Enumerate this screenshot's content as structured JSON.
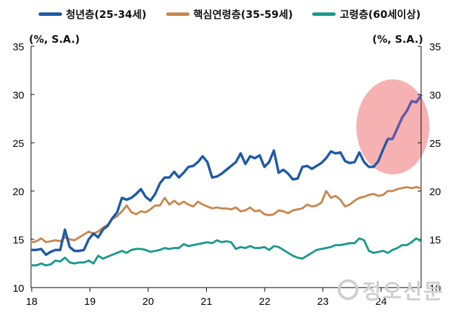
{
  "chart_data": {
    "type": "line",
    "unit_left": "(%, S.A.)",
    "unit_right": "(%, S.A.)",
    "x_tick_labels": [
      "18",
      "19",
      "20",
      "21",
      "22",
      "23",
      "24"
    ],
    "y_tick_labels": [
      "10",
      "15",
      "20",
      "25",
      "30",
      "35"
    ],
    "ylim": [
      10,
      35
    ],
    "legend_position": "top",
    "grid": false,
    "highlight": {
      "shape": "ellipse",
      "color": "#f4a5a5",
      "around": "청년층(25-34세) 2024 surge"
    },
    "series": [
      {
        "name": "청년층(25-34세)",
        "color": "#1f5aa6",
        "values": [
          13.9,
          13.9,
          14.0,
          13.4,
          13.7,
          13.9,
          13.9,
          16.0,
          14.2,
          13.8,
          13.8,
          13.9,
          15.0,
          15.6,
          15.2,
          16.0,
          16.4,
          17.2,
          17.8,
          19.3,
          19.1,
          19.3,
          19.7,
          20.2,
          19.4,
          19.0,
          19.7,
          20.8,
          21.4,
          21.4,
          22.0,
          21.4,
          21.9,
          22.5,
          22.6,
          23.0,
          23.6,
          23.0,
          21.4,
          21.5,
          21.8,
          22.2,
          22.6,
          23.0,
          23.9,
          22.8,
          23.6,
          23.4,
          23.7,
          22.5,
          23.0,
          24.2,
          21.9,
          22.2,
          21.8,
          21.2,
          21.3,
          22.5,
          22.6,
          22.3,
          22.6,
          22.9,
          23.4,
          24.1,
          23.9,
          24.0,
          23.1,
          22.9,
          23.0,
          24.0,
          23.0,
          22.5,
          22.5,
          23.1,
          24.3,
          25.4,
          25.4,
          26.5,
          27.6,
          28.3,
          29.3,
          29.2,
          29.9
        ]
      },
      {
        "name": "핵심연령층(35-59세)",
        "color": "#c8874e",
        "values": [
          14.7,
          14.8,
          15.1,
          14.7,
          14.8,
          14.9,
          14.8,
          15.2,
          15.0,
          14.9,
          15.2,
          15.5,
          15.8,
          15.6,
          15.8,
          16.2,
          16.5,
          17.1,
          17.4,
          17.9,
          18.5,
          17.8,
          17.6,
          17.9,
          17.8,
          18.1,
          18.5,
          18.5,
          19.3,
          18.6,
          19.0,
          18.6,
          18.9,
          18.6,
          18.4,
          18.9,
          18.6,
          18.4,
          18.2,
          18.3,
          18.2,
          18.2,
          18.1,
          18.3,
          17.9,
          18.0,
          18.3,
          17.9,
          18.0,
          17.6,
          17.5,
          17.6,
          18.0,
          17.9,
          17.7,
          18.0,
          18.1,
          18.2,
          18.6,
          18.4,
          18.5,
          18.8,
          20.0,
          19.3,
          19.5,
          19.1,
          18.4,
          18.6,
          19.0,
          19.3,
          19.4,
          19.6,
          19.7,
          19.5,
          19.6,
          20.0,
          20.0,
          20.2,
          20.3,
          20.4,
          20.3,
          20.4,
          20.3
        ]
      },
      {
        "name": "고령층(60세이상)",
        "color": "#1a9a8a",
        "values": [
          12.3,
          12.3,
          12.5,
          12.3,
          12.4,
          12.8,
          12.7,
          13.1,
          12.6,
          12.5,
          12.6,
          12.6,
          12.8,
          12.5,
          13.3,
          13.0,
          13.2,
          13.4,
          13.6,
          13.8,
          13.6,
          13.9,
          14.0,
          14.0,
          13.9,
          13.7,
          13.8,
          13.9,
          14.1,
          14.0,
          14.1,
          14.1,
          14.5,
          14.3,
          14.4,
          14.5,
          14.6,
          14.7,
          14.6,
          14.9,
          14.7,
          14.8,
          14.7,
          14.0,
          14.2,
          14.1,
          14.3,
          14.1,
          14.1,
          14.2,
          13.9,
          14.3,
          14.2,
          13.9,
          13.6,
          13.3,
          13.1,
          13.0,
          13.3,
          13.6,
          13.9,
          14.0,
          14.1,
          14.2,
          14.4,
          14.4,
          14.5,
          14.6,
          14.6,
          15.1,
          14.9,
          13.8,
          13.6,
          13.7,
          13.8,
          13.6,
          13.9,
          14.1,
          14.4,
          14.4,
          14.7,
          15.1,
          14.8
        ]
      }
    ]
  },
  "watermark": "정오신문"
}
